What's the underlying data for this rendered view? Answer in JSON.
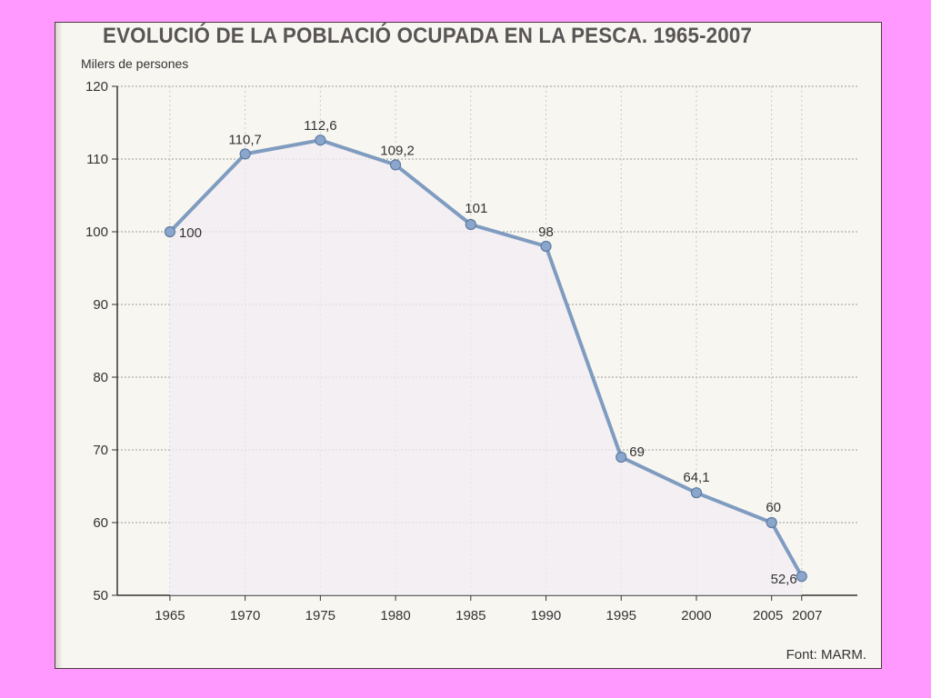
{
  "colors": {
    "background": "#ff99ff",
    "line": "#7f9cc0",
    "marker": "#8aa6cc",
    "fill": "#f2ecf2"
  },
  "chart_data": {
    "type": "line",
    "title": "EVOLUCIÓ DE LA POBLACIÓ OCUPADA EN LA PESCA. 1965-2007",
    "ylabel": "Milers de persones",
    "xlabel": "",
    "source": "Font: MARM.",
    "ylim": [
      50,
      120
    ],
    "yticks": [
      "50",
      "60",
      "70",
      "80",
      "90",
      "100",
      "110",
      "120"
    ],
    "grid": true,
    "x": [
      1965,
      1970,
      1975,
      1980,
      1985,
      1990,
      1995,
      2000,
      2005,
      2007
    ],
    "xticks": [
      "1965",
      "1970",
      "1975",
      "1980",
      "1985",
      "1990",
      "1995",
      "2000",
      "2005",
      "2007"
    ],
    "series": [
      {
        "values": [
          100,
          110.7,
          112.6,
          109.2,
          101,
          98,
          69,
          64.1,
          60,
          52.6
        ],
        "labels": [
          "100",
          "110,7",
          "112,6",
          "109,2",
          "101",
          "98",
          "69",
          "64,1",
          "60",
          "52,6"
        ]
      }
    ]
  }
}
